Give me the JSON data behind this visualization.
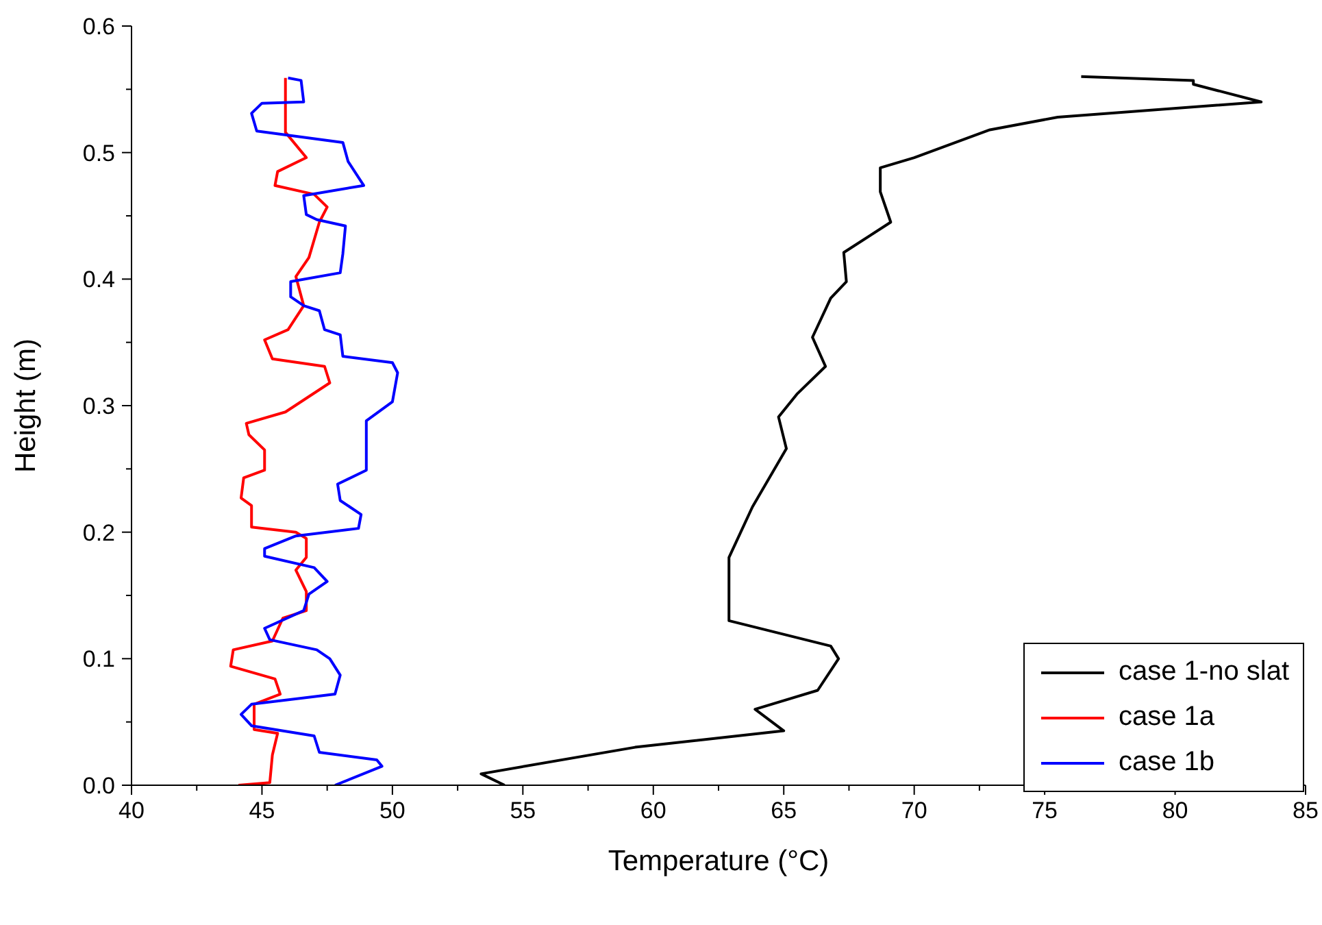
{
  "chart_data": {
    "type": "line",
    "xlabel": "Temperature (°C)",
    "ylabel": "Height (m)",
    "xlim": [
      40,
      85
    ],
    "ylim": [
      0,
      0.6
    ],
    "xticks": [
      40,
      {
        "value": 42.5,
        "label": null
      },
      45,
      {
        "value": 47.5,
        "label": null
      },
      50,
      {
        "value": 52.5,
        "label": null
      },
      55,
      {
        "value": 57.5,
        "label": null
      },
      60,
      {
        "value": 62.5,
        "label": null
      },
      65,
      {
        "value": 67.5,
        "label": null
      },
      70,
      {
        "value": 72.5,
        "label": null
      },
      75,
      {
        "value": 77.5,
        "label": null
      },
      80,
      {
        "value": 82.5,
        "label": null
      },
      85
    ],
    "yticks": [
      {
        "value": 0,
        "label": "0.0"
      },
      {
        "value": 0.05,
        "label": null
      },
      0.1,
      {
        "value": 0.15,
        "label": null
      },
      0.2,
      {
        "value": 0.25,
        "label": null
      },
      0.3,
      {
        "value": 0.35,
        "label": null
      },
      0.4,
      {
        "value": 0.45,
        "label": null
      },
      0.5,
      {
        "value": 0.55,
        "label": null
      },
      0.6
    ],
    "grid": false,
    "legend": "bottom right",
    "marker": "none",
    "line_style": "solid",
    "series": [
      {
        "name": "case 1-no slat",
        "color": "#000000",
        "x": [
          54.3,
          53.4,
          59.3,
          65.0,
          63.9,
          66.3,
          67.1,
          66.8,
          62.9,
          62.9,
          63.8,
          65.1,
          64.8,
          65.5,
          66.6,
          66.1,
          66.8,
          67.4,
          67.3,
          69.1,
          68.7,
          68.7,
          70.0,
          72.9,
          75.5,
          83.3,
          80.7,
          80.7,
          76.4
        ],
        "values": [
          0.0,
          0.009,
          0.03,
          0.043,
          0.06,
          0.075,
          0.1,
          0.11,
          0.13,
          0.18,
          0.22,
          0.266,
          0.291,
          0.309,
          0.331,
          0.354,
          0.385,
          0.398,
          0.421,
          0.445,
          0.469,
          0.488,
          0.496,
          0.518,
          0.528,
          0.54,
          0.554,
          0.557,
          0.56
        ]
      },
      {
        "name": "case 1a",
        "color": "#ff0000",
        "x": [
          44.1,
          45.3,
          45.4,
          45.6,
          44.7,
          44.7,
          45.7,
          45.5,
          43.8,
          43.9,
          45.4,
          45.8,
          46.7,
          46.7,
          46.3,
          46.7,
          46.7,
          46.3,
          44.6,
          44.6,
          44.2,
          44.3,
          45.1,
          45.1,
          44.5,
          44.4,
          45.9,
          47.6,
          47.4,
          45.4,
          45.1,
          46.0,
          46.6,
          46.3,
          46.8,
          47.2,
          47.5,
          47.0,
          45.5,
          45.6,
          46.7,
          45.9,
          45.9,
          45.9
        ],
        "values": [
          0.0,
          0.002,
          0.024,
          0.041,
          0.044,
          0.064,
          0.072,
          0.084,
          0.094,
          0.107,
          0.114,
          0.132,
          0.138,
          0.153,
          0.17,
          0.18,
          0.195,
          0.2,
          0.204,
          0.221,
          0.227,
          0.243,
          0.249,
          0.265,
          0.277,
          0.286,
          0.295,
          0.318,
          0.331,
          0.337,
          0.352,
          0.36,
          0.379,
          0.402,
          0.417,
          0.445,
          0.457,
          0.467,
          0.474,
          0.485,
          0.496,
          0.516,
          0.542,
          0.559
        ]
      },
      {
        "name": "case 1b",
        "color": "#0000ff",
        "x": [
          47.8,
          49.6,
          49.4,
          47.2,
          47.0,
          44.6,
          44.2,
          44.6,
          47.8,
          48.0,
          47.6,
          47.1,
          45.3,
          45.1,
          46.6,
          46.8,
          47.5,
          47.0,
          45.1,
          45.1,
          46.3,
          48.7,
          48.8,
          48.0,
          47.9,
          49.0,
          49.0,
          49.0,
          50.0,
          50.2,
          50.0,
          48.1,
          48.0,
          47.4,
          47.2,
          46.6,
          46.1,
          46.1,
          48.0,
          48.1,
          48.2,
          47.1,
          46.7,
          46.6,
          48.9,
          48.3,
          48.1,
          44.8,
          44.6,
          45.0,
          46.6,
          46.5,
          46.0
        ],
        "values": [
          0.0,
          0.015,
          0.02,
          0.026,
          0.039,
          0.047,
          0.056,
          0.064,
          0.072,
          0.087,
          0.1,
          0.107,
          0.115,
          0.124,
          0.138,
          0.151,
          0.161,
          0.172,
          0.181,
          0.187,
          0.197,
          0.203,
          0.214,
          0.225,
          0.238,
          0.249,
          0.269,
          0.288,
          0.303,
          0.326,
          0.334,
          0.339,
          0.356,
          0.36,
          0.375,
          0.379,
          0.386,
          0.398,
          0.405,
          0.42,
          0.442,
          0.447,
          0.451,
          0.466,
          0.474,
          0.493,
          0.508,
          0.517,
          0.531,
          0.539,
          0.54,
          0.557,
          0.559
        ]
      }
    ]
  }
}
